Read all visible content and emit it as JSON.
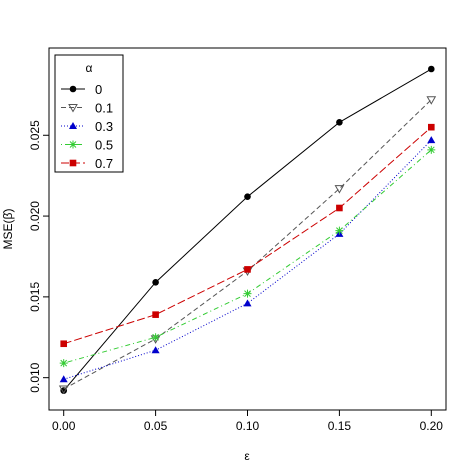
{
  "chart_data": {
    "type": "line",
    "x_label": "ε",
    "y_label": "MSE(β̂)",
    "x": [
      0.0,
      0.05,
      0.1,
      0.15,
      0.2
    ],
    "xlim": [
      -0.008,
      0.208
    ],
    "xticks": [
      {
        "value": 0,
        "label": "0.00"
      },
      0.05,
      {
        "value": 0.1,
        "label": "0.10"
      },
      0.15,
      {
        "value": 0.2,
        "label": "0.20"
      }
    ],
    "ylim": [
      0.008,
      0.0304
    ],
    "yticks": [
      {
        "value": 0.01,
        "label": "0.010"
      },
      0.015,
      {
        "value": 0.02,
        "label": "0.020"
      },
      0.025
    ],
    "legend_title": "α",
    "legend_position": "top-left",
    "series": [
      {
        "name": "0",
        "color": "#000000",
        "marker": "circle",
        "dash": "solid",
        "values": [
          0.0092,
          0.0159,
          0.0212,
          0.0258,
          0.0291
        ]
      },
      {
        "name": "0.1",
        "color": "#555555",
        "marker": "triangle-down",
        "dash": "dashed",
        "values": [
          0.0093,
          0.0124,
          0.0166,
          0.0217,
          0.0272
        ]
      },
      {
        "name": "0.3",
        "color": "#0000cc",
        "marker": "triangle",
        "dash": "dotted",
        "values": [
          0.0099,
          0.0117,
          0.0146,
          0.0189,
          0.0247
        ]
      },
      {
        "name": "0.5",
        "color": "#33cc33",
        "marker": "asterisk",
        "dash": "dotdash",
        "values": [
          0.0109,
          0.0125,
          0.0152,
          0.0191,
          0.0241
        ]
      },
      {
        "name": "0.7",
        "color": "#cc0000",
        "marker": "square",
        "dash": "longdash",
        "values": [
          0.0121,
          0.0139,
          0.0167,
          0.0205,
          0.0255
        ]
      }
    ]
  }
}
